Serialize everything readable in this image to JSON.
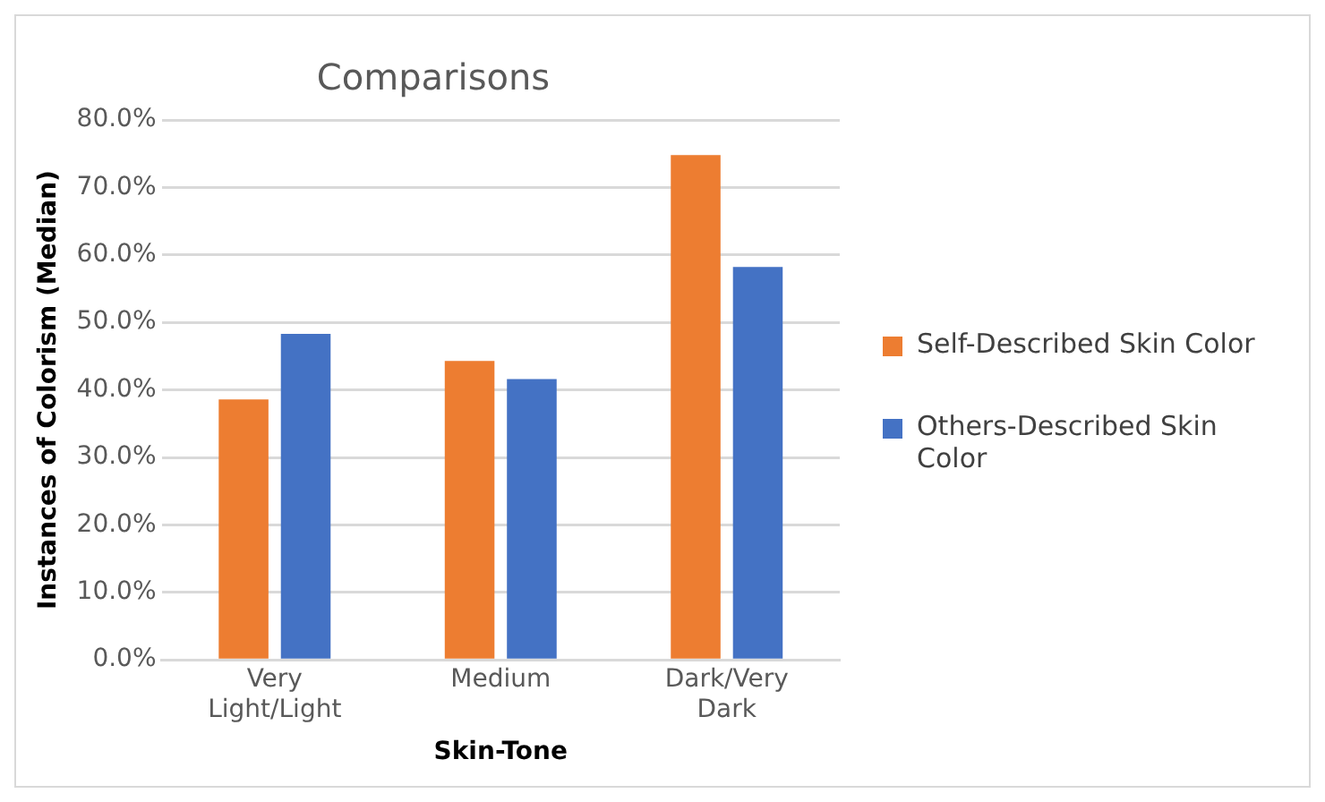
{
  "chart_data": {
    "type": "bar",
    "title": "Comparisons",
    "xlabel": "Skin-Tone",
    "ylabel": "Instances of Colorism (Median)",
    "categories": [
      "Very Light/Light",
      "Medium",
      "Dark/Very Dark"
    ],
    "series": [
      {
        "name": "Self-Described Skin Color",
        "color": "#ed7d31",
        "values": [
          38.6,
          44.3,
          74.8
        ]
      },
      {
        "name": "Others-Described Skin Color",
        "color": "#4472c4",
        "values": [
          48.3,
          41.6,
          58.2
        ]
      }
    ],
    "ylim": [
      0,
      80
    ],
    "yticks": [
      {
        "value": 0,
        "label": "0.0%"
      },
      {
        "value": 10,
        "label": "10.0%"
      },
      {
        "value": 20,
        "label": "20.0%"
      },
      {
        "value": 30,
        "label": "30.0%"
      },
      {
        "value": 40,
        "label": "40.0%"
      },
      {
        "value": 50,
        "label": "50.0%"
      },
      {
        "value": 60,
        "label": "60.0%"
      },
      {
        "value": 70,
        "label": "70.0%"
      },
      {
        "value": 80,
        "label": "80.0%"
      }
    ],
    "grid": "y",
    "legend": "right"
  }
}
